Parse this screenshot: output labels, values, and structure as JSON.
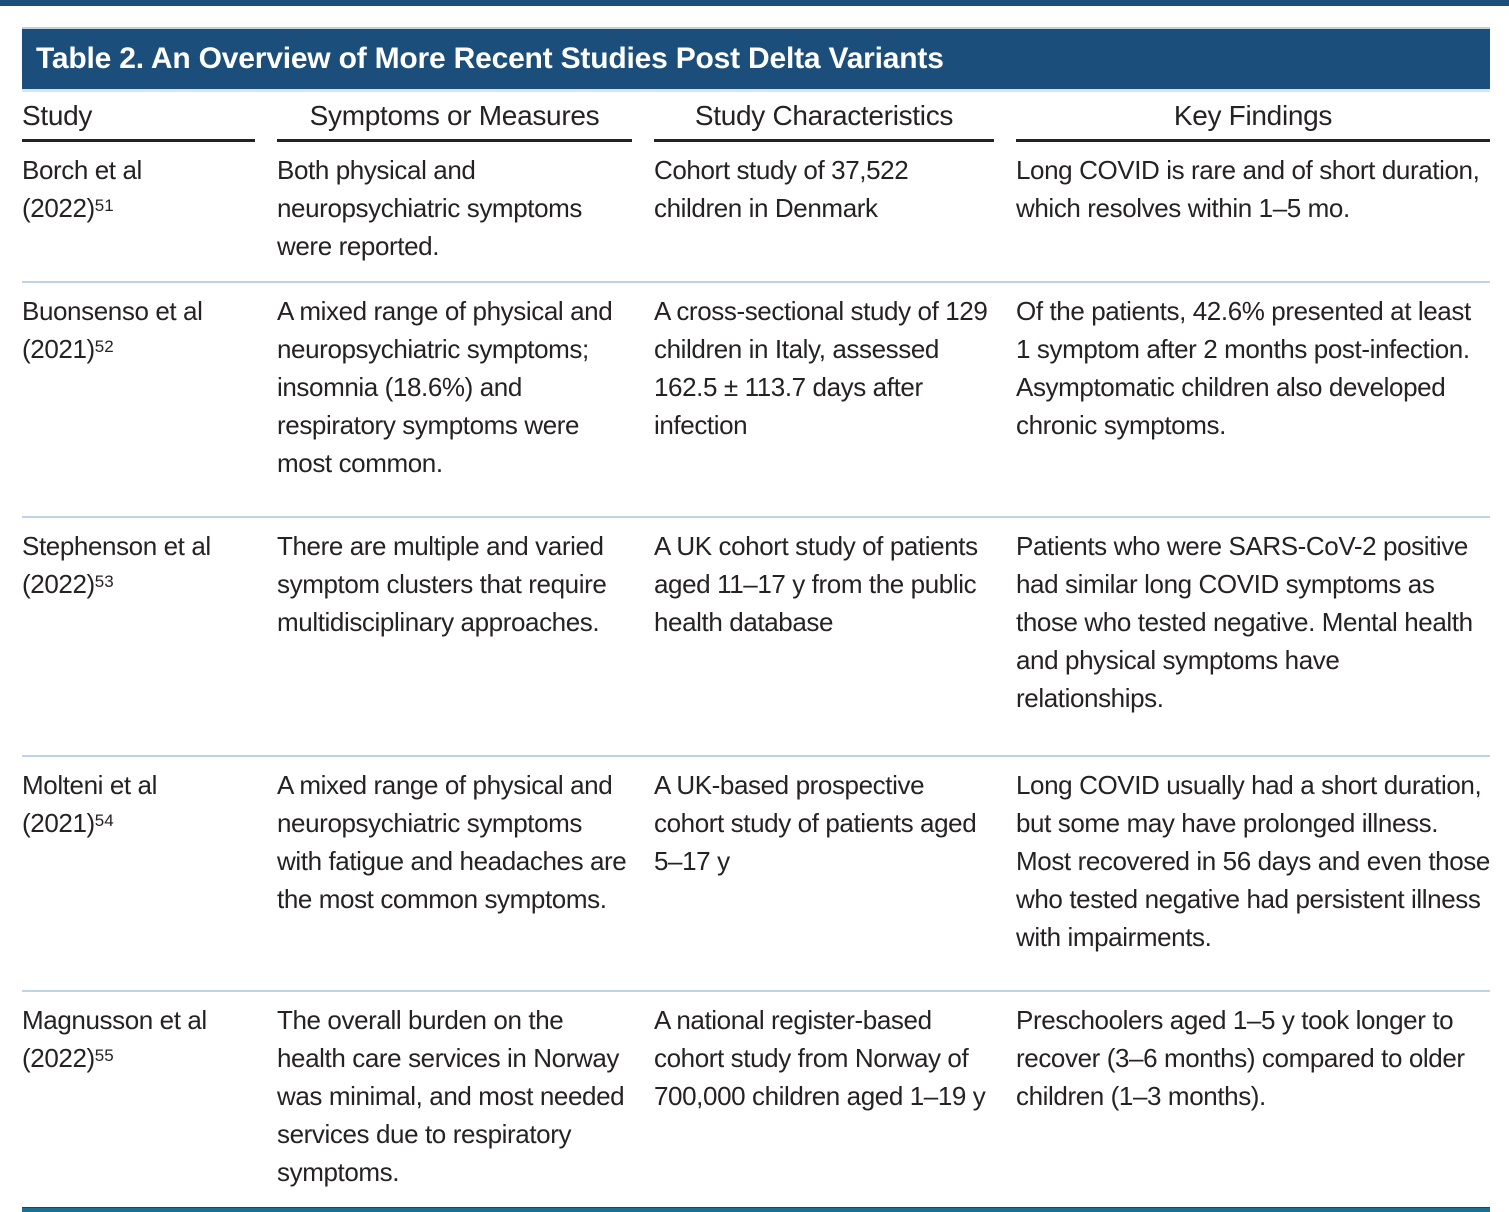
{
  "page": {
    "title_bar": "Table 2. An Overview of More Recent Studies Post Delta Variants"
  },
  "table": {
    "columns": [
      "Study",
      "Symptoms or Measures",
      "Study Characteristics",
      "Key Findings"
    ],
    "rows": [
      {
        "author": "Borch et al",
        "year": "(2022)",
        "ref": "51",
        "symptoms": "Both physical and neuropsychiatric symptoms were reported.",
        "characteristics": "Cohort study of 37,522 children in Denmark",
        "findings": "Long COVID is rare and of short duration, which resolves within 1–5 mo."
      },
      {
        "author": "Buonsenso et al",
        "year": "(2021)",
        "ref": "52",
        "symptoms": "A mixed range of physical and neuropsychiatric symptoms; insomnia (18.6%) and respiratory symptoms were most common.",
        "characteristics": "A cross-sectional study of 129 children in Italy, assessed 162.5 ± 113.7 days after infection",
        "findings": "Of the patients, 42.6% presented at least 1 symptom after 2 months post-infection. Asymptomatic children also developed chronic symptoms."
      },
      {
        "author": "Stephenson et al",
        "year": "(2022)",
        "ref": "53",
        "symptoms": "There are multiple and varied symptom clusters that require multidisciplinary approaches.",
        "characteristics": "A UK cohort study of patients aged 11–17 y from the public health database",
        "findings": "Patients who were SARS-CoV-2 positive had similar long COVID symptoms as those who tested negative. Mental health and physical symptoms have relationships."
      },
      {
        "author": "Molteni et al",
        "year": "(2021)",
        "ref": "54",
        "symptoms": "A mixed range of physical and neuropsychiatric symptoms with fatigue and headaches are the most common symptoms.",
        "characteristics": "A UK-based prospective cohort study of patients aged 5–17 y",
        "findings": "Long COVID usually had a short duration, but some may have prolonged illness. Most recovered in 56 days and even those who tested negative had persistent illness with impairments."
      },
      {
        "author": "Magnusson et al",
        "year": "(2022)",
        "ref": "55",
        "symptoms": "The overall burden on the health care services in Norway was minimal, and most needed services due to respiratory symptoms.",
        "characteristics": "A national register-based cohort study from Norway of 700,000 children aged 1–19 y",
        "findings": "Preschoolers aged 1–5 y took longer to recover (3–6 months) compared to older children (1–3 months)."
      }
    ]
  },
  "colors": {
    "title_bar_bg": "#1b4e7a",
    "title_text": "#ffffff",
    "body_text": "#262224",
    "header_underline": "#262223",
    "row_separator": "#bdd4e4",
    "bottom_rule": "#1b6f93"
  }
}
